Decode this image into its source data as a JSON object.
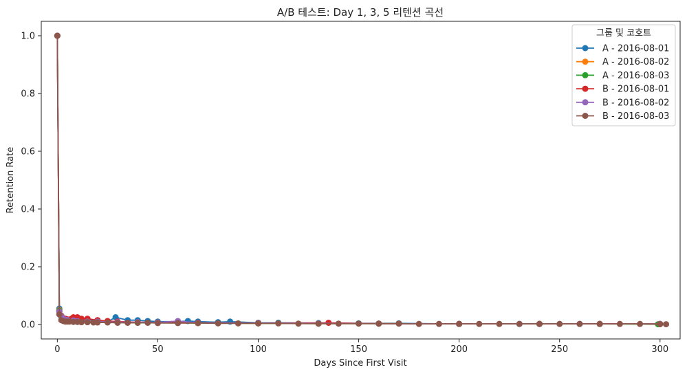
{
  "chart_data": {
    "type": "line",
    "title": "A/B 테스트: Day 1, 3, 5 리텐션 곡선",
    "xlabel": "Days Since First Visit",
    "ylabel": "Retention Rate",
    "xlim": [
      -8,
      310
    ],
    "ylim": [
      -0.05,
      1.05
    ],
    "xticks": [
      0,
      50,
      100,
      150,
      200,
      250,
      300
    ],
    "yticks": [
      0.0,
      0.2,
      0.4,
      0.6,
      0.8,
      1.0
    ],
    "xtick_labels": [
      "0",
      "50",
      "100",
      "150",
      "200",
      "250",
      "300"
    ],
    "ytick_labels": [
      "0.0",
      "0.2",
      "0.4",
      "0.6",
      "0.8",
      "1.0"
    ],
    "grid": false,
    "legend": {
      "title": "그룹 및 코호트",
      "placement": "top-right"
    },
    "markers": "circle",
    "series": [
      {
        "name": "A - 2016-08-01",
        "color": "#1f77b4",
        "points": [
          [
            0,
            1.0
          ],
          [
            1,
            0.055
          ],
          [
            2,
            0.03
          ],
          [
            3,
            0.02
          ],
          [
            5,
            0.015
          ],
          [
            8,
            0.012
          ],
          [
            10,
            0.012
          ],
          [
            15,
            0.015
          ],
          [
            20,
            0.015
          ],
          [
            25,
            0.01
          ],
          [
            29,
            0.025
          ],
          [
            35,
            0.015
          ],
          [
            40,
            0.015
          ],
          [
            45,
            0.012
          ],
          [
            50,
            0.01
          ],
          [
            60,
            0.01
          ],
          [
            65,
            0.012
          ],
          [
            70,
            0.01
          ],
          [
            80,
            0.008
          ],
          [
            86,
            0.01
          ],
          [
            100,
            0.006
          ],
          [
            110,
            0.006
          ],
          [
            130,
            0.005
          ],
          [
            150,
            0.004
          ],
          [
            170,
            0.004
          ],
          [
            200,
            0.002
          ],
          [
            230,
            0.002
          ],
          [
            260,
            0.002
          ],
          [
            300,
            0.002
          ]
        ]
      },
      {
        "name": "A - 2016-08-02",
        "color": "#ff7f0e",
        "points": [
          [
            0,
            1.0
          ],
          [
            1,
            0.05
          ],
          [
            2,
            0.028
          ],
          [
            3,
            0.018
          ],
          [
            5,
            0.014
          ],
          [
            8,
            0.012
          ],
          [
            10,
            0.01
          ],
          [
            15,
            0.01
          ],
          [
            20,
            0.008
          ],
          [
            30,
            0.008
          ],
          [
            40,
            0.007
          ],
          [
            50,
            0.006
          ],
          [
            70,
            0.005
          ],
          [
            100,
            0.004
          ],
          [
            130,
            0.003
          ],
          [
            160,
            0.003
          ],
          [
            200,
            0.002
          ],
          [
            240,
            0.002
          ],
          [
            270,
            0.002
          ],
          [
            300,
            0.002
          ]
        ]
      },
      {
        "name": "A - 2016-08-03",
        "color": "#2ca02c",
        "points": [
          [
            0,
            1.0
          ],
          [
            1,
            0.048
          ],
          [
            2,
            0.026
          ],
          [
            3,
            0.017
          ],
          [
            5,
            0.013
          ],
          [
            8,
            0.011
          ],
          [
            10,
            0.009
          ],
          [
            15,
            0.009
          ],
          [
            20,
            0.008
          ],
          [
            30,
            0.007
          ],
          [
            40,
            0.006
          ],
          [
            50,
            0.006
          ],
          [
            70,
            0.005
          ],
          [
            100,
            0.004
          ],
          [
            130,
            0.003
          ],
          [
            160,
            0.003
          ],
          [
            200,
            0.002
          ],
          [
            240,
            0.002
          ],
          [
            270,
            0.002
          ],
          [
            299,
            0.001
          ]
        ]
      },
      {
        "name": "B - 2016-08-01",
        "color": "#d62728",
        "points": [
          [
            0,
            1.0
          ],
          [
            1,
            0.045
          ],
          [
            2,
            0.03
          ],
          [
            3,
            0.022
          ],
          [
            4,
            0.02
          ],
          [
            5,
            0.018
          ],
          [
            7,
            0.02
          ],
          [
            8,
            0.025
          ],
          [
            9,
            0.022
          ],
          [
            10,
            0.025
          ],
          [
            12,
            0.02
          ],
          [
            15,
            0.02
          ],
          [
            20,
            0.015
          ],
          [
            25,
            0.012
          ],
          [
            30,
            0.01
          ],
          [
            40,
            0.008
          ],
          [
            50,
            0.007
          ],
          [
            70,
            0.006
          ],
          [
            100,
            0.005
          ],
          [
            135,
            0.006
          ],
          [
            160,
            0.003
          ],
          [
            200,
            0.002
          ],
          [
            240,
            0.002
          ],
          [
            270,
            0.002
          ],
          [
            300,
            0.002
          ]
        ]
      },
      {
        "name": "B - 2016-08-02",
        "color": "#9467bd",
        "points": [
          [
            0,
            1.0
          ],
          [
            1,
            0.045
          ],
          [
            2,
            0.028
          ],
          [
            3,
            0.02
          ],
          [
            5,
            0.016
          ],
          [
            8,
            0.014
          ],
          [
            10,
            0.012
          ],
          [
            15,
            0.01
          ],
          [
            20,
            0.01
          ],
          [
            30,
            0.008
          ],
          [
            40,
            0.008
          ],
          [
            50,
            0.007
          ],
          [
            60,
            0.012
          ],
          [
            70,
            0.006
          ],
          [
            100,
            0.005
          ],
          [
            130,
            0.004
          ],
          [
            160,
            0.003
          ],
          [
            200,
            0.002
          ],
          [
            240,
            0.002
          ],
          [
            270,
            0.002
          ],
          [
            300,
            0.002
          ]
        ]
      },
      {
        "name": "B - 2016-08-03",
        "color": "#8c564b",
        "points": [
          [
            0,
            1.0
          ],
          [
            1,
            0.035
          ],
          [
            2,
            0.015
          ],
          [
            3,
            0.012
          ],
          [
            4,
            0.01
          ],
          [
            5,
            0.01
          ],
          [
            6,
            0.01
          ],
          [
            8,
            0.009
          ],
          [
            10,
            0.009
          ],
          [
            12,
            0.008
          ],
          [
            15,
            0.008
          ],
          [
            18,
            0.007
          ],
          [
            20,
            0.007
          ],
          [
            25,
            0.007
          ],
          [
            30,
            0.006
          ],
          [
            35,
            0.006
          ],
          [
            40,
            0.006
          ],
          [
            45,
            0.006
          ],
          [
            50,
            0.005
          ],
          [
            60,
            0.005
          ],
          [
            70,
            0.005
          ],
          [
            80,
            0.004
          ],
          [
            90,
            0.004
          ],
          [
            100,
            0.004
          ],
          [
            110,
            0.004
          ],
          [
            120,
            0.003
          ],
          [
            130,
            0.003
          ],
          [
            140,
            0.003
          ],
          [
            150,
            0.003
          ],
          [
            160,
            0.003
          ],
          [
            170,
            0.003
          ],
          [
            180,
            0.002
          ],
          [
            190,
            0.002
          ],
          [
            200,
            0.002
          ],
          [
            210,
            0.002
          ],
          [
            220,
            0.002
          ],
          [
            230,
            0.002
          ],
          [
            240,
            0.002
          ],
          [
            250,
            0.002
          ],
          [
            260,
            0.002
          ],
          [
            270,
            0.002
          ],
          [
            280,
            0.002
          ],
          [
            290,
            0.002
          ],
          [
            300,
            0.001
          ],
          [
            303,
            0.001
          ]
        ]
      }
    ]
  }
}
